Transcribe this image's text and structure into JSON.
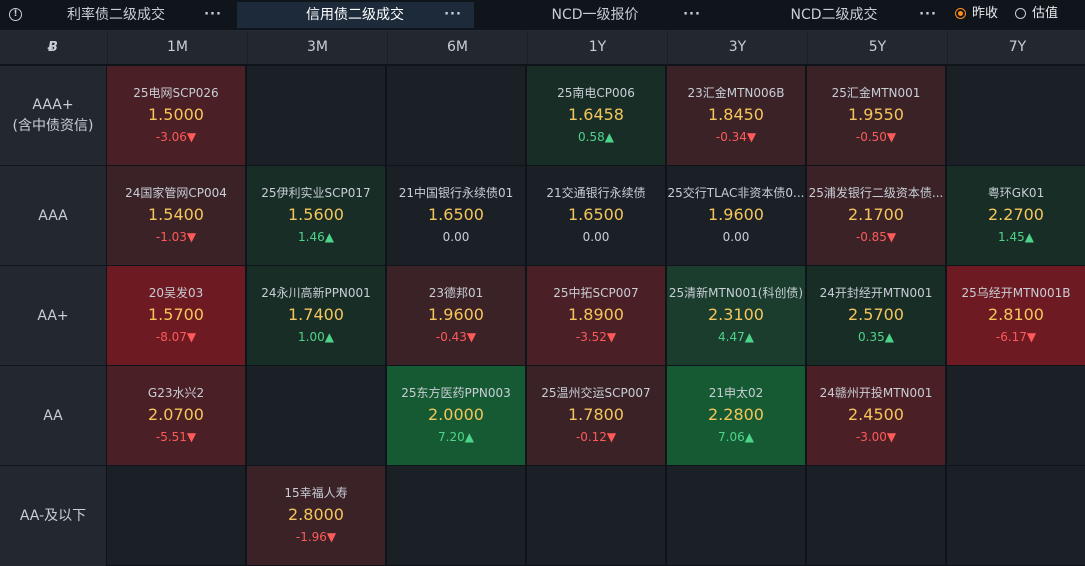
{
  "tabs": [
    {
      "label": "利率债二级成交",
      "active": false
    },
    {
      "label": "信用债二级成交",
      "active": true
    },
    {
      "label": "NCD一级报价",
      "active": false
    },
    {
      "label": "NCD二级成交",
      "active": false
    }
  ],
  "more_glyph": "···",
  "radio": {
    "options": [
      "昨收",
      "估值"
    ],
    "selected": "昨收"
  },
  "corner_logo": "Ƀ",
  "columns": [
    "1M",
    "3M",
    "6M",
    "1Y",
    "3Y",
    "5Y",
    "7Y"
  ],
  "rows": [
    {
      "label": "AAA+\n(含中债资信)",
      "cells": [
        {
          "bond": "25电网SCP026",
          "yield": "1.5000",
          "change": "-3.06▼",
          "dir": "down",
          "tone": "red2"
        },
        null,
        null,
        {
          "bond": "25南电CP006",
          "yield": "1.6458",
          "change": "0.58▲",
          "dir": "up",
          "tone": "green1"
        },
        {
          "bond": "23汇金MTN006B",
          "yield": "1.8450",
          "change": "-0.34▼",
          "dir": "down",
          "tone": "red1"
        },
        {
          "bond": "25汇金MTN001",
          "yield": "1.9550",
          "change": "-0.50▼",
          "dir": "down",
          "tone": "red1"
        },
        null
      ]
    },
    {
      "label": "AAA",
      "cells": [
        {
          "bond": "24国家管网CP004",
          "yield": "1.5400",
          "change": "-1.03▼",
          "dir": "down",
          "tone": "red1"
        },
        {
          "bond": "25伊利实业SCP017",
          "yield": "1.5600",
          "change": "1.46▲",
          "dir": "up",
          "tone": "green1"
        },
        {
          "bond": "21中国银行永续债01",
          "yield": "1.6500",
          "change": "0.00",
          "dir": "flat",
          "tone": "plain"
        },
        {
          "bond": "21交通银行永续债",
          "yield": "1.6500",
          "change": "0.00",
          "dir": "flat",
          "tone": "plain"
        },
        {
          "bond": "25交行TLAC非资本债0...",
          "yield": "1.9600",
          "change": "0.00",
          "dir": "flat",
          "tone": "plain"
        },
        {
          "bond": "25浦发银行二级资本债...",
          "yield": "2.1700",
          "change": "-0.85▼",
          "dir": "down",
          "tone": "red1"
        },
        {
          "bond": "粤环GK01",
          "yield": "2.2700",
          "change": "1.45▲",
          "dir": "up",
          "tone": "green1"
        }
      ]
    },
    {
      "label": "AA+",
      "cells": [
        {
          "bond": "20吴发03",
          "yield": "1.5700",
          "change": "-8.07▼",
          "dir": "down",
          "tone": "red3"
        },
        {
          "bond": "24永川高新PPN001",
          "yield": "1.7400",
          "change": "1.00▲",
          "dir": "up",
          "tone": "green1"
        },
        {
          "bond": "23德邦01",
          "yield": "1.9600",
          "change": "-0.43▼",
          "dir": "down",
          "tone": "red1"
        },
        {
          "bond": "25中拓SCP007",
          "yield": "1.8900",
          "change": "-3.52▼",
          "dir": "down",
          "tone": "red2"
        },
        {
          "bond": "25清新MTN001(科创债)",
          "yield": "2.3100",
          "change": "4.47▲",
          "dir": "up",
          "tone": "green2"
        },
        {
          "bond": "24开封经开MTN001",
          "yield": "2.5700",
          "change": "0.35▲",
          "dir": "up",
          "tone": "green1"
        },
        {
          "bond": "25乌经开MTN001B",
          "yield": "2.8100",
          "change": "-6.17▼",
          "dir": "down",
          "tone": "red3"
        }
      ]
    },
    {
      "label": "AA",
      "cells": [
        {
          "bond": "G23水兴2",
          "yield": "2.0700",
          "change": "-5.51▼",
          "dir": "down",
          "tone": "red2"
        },
        null,
        {
          "bond": "25东方医药PPN003",
          "yield": "2.0000",
          "change": "7.20▲",
          "dir": "up",
          "tone": "green3"
        },
        {
          "bond": "25温州交运SCP007",
          "yield": "1.7800",
          "change": "-0.12▼",
          "dir": "down",
          "tone": "red1"
        },
        {
          "bond": "21申太02",
          "yield": "2.2800",
          "change": "7.06▲",
          "dir": "up",
          "tone": "green3"
        },
        {
          "bond": "24赣州开投MTN001",
          "yield": "2.4500",
          "change": "-3.00▼",
          "dir": "down",
          "tone": "red2"
        },
        null
      ]
    },
    {
      "label": "AA-及以下",
      "cells": [
        null,
        {
          "bond": "15幸福人寿",
          "yield": "2.8000",
          "change": "-1.96▼",
          "dir": "down",
          "tone": "red1"
        },
        null,
        null,
        null,
        null,
        null
      ]
    }
  ]
}
